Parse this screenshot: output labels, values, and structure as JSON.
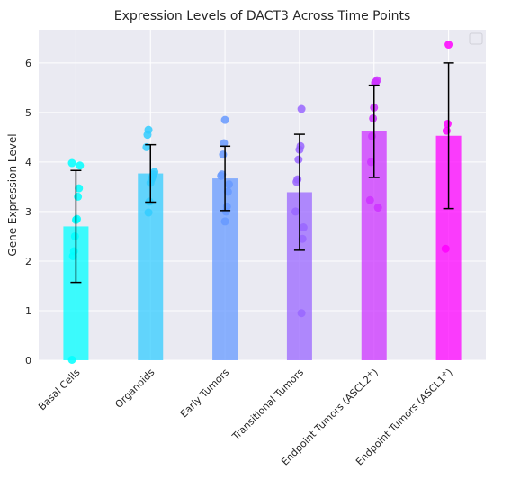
{
  "chart_data": {
    "type": "bar",
    "title": "Expression Levels of DACT3 Across Time Points",
    "xlabel": "",
    "ylabel": "Gene Expression Level",
    "ylim": [
      0,
      6.67
    ],
    "yticks": [
      0,
      1,
      2,
      3,
      4,
      5,
      6
    ],
    "grid": true,
    "legend": "top-right",
    "categories": [
      "Basal Cells",
      "Organoids",
      "Early Tumors",
      "Transitional Tumors",
      "Endpoint Tumors (ASCL2⁺)",
      "Endpoint Tumors (ASCL1⁺)"
    ],
    "category_labels": [
      {
        "text": "Basal Cells"
      },
      {
        "text": "Organoids"
      },
      {
        "text": "Early Tumors"
      },
      {
        "text": "Transitional Tumors"
      },
      {
        "text": "Endpoint Tumors (ASCL2",
        "sup": "+",
        "tail": ")"
      },
      {
        "text": "Endpoint Tumors (ASCL1",
        "sup": "+",
        "tail": ")"
      }
    ],
    "values": [
      2.7,
      3.77,
      3.67,
      3.39,
      4.62,
      4.53
    ],
    "error": [
      1.13,
      0.58,
      0.65,
      1.17,
      0.93,
      1.47
    ],
    "colors": [
      "#00ffff",
      "#33ccff",
      "#6699ff",
      "#9966ff",
      "#cc33ff",
      "#ff00ff"
    ],
    "points": [
      [
        0.01,
        2.1,
        2.2,
        2.5,
        2.83,
        2.85,
        3.3,
        3.47,
        3.93,
        3.98
      ],
      [
        2.98,
        3.2,
        3.58,
        3.65,
        3.7,
        3.75,
        3.8,
        4.3,
        4.55,
        4.65
      ],
      [
        2.8,
        3.0,
        3.1,
        3.4,
        3.55,
        3.72,
        3.75,
        4.15,
        4.38,
        4.85
      ],
      [
        0.95,
        2.45,
        2.68,
        3.0,
        3.6,
        3.65,
        4.05,
        4.25,
        4.32,
        5.07
      ],
      [
        3.08,
        3.23,
        4.0,
        4.52,
        4.88,
        5.1,
        5.6,
        5.62,
        5.65
      ],
      [
        2.25,
        4.63,
        4.77,
        6.37
      ]
    ]
  }
}
